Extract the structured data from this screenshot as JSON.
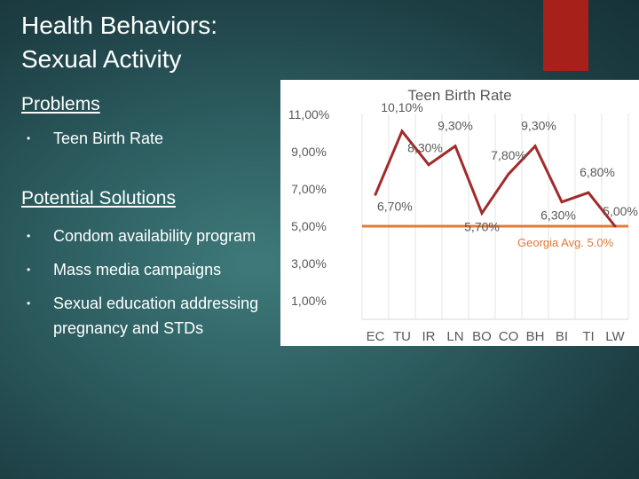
{
  "slide": {
    "title_line1": "Health Behaviors:",
    "title_line2": "Sexual Activity",
    "problems_heading": "Problems",
    "problems": [
      "Teen Birth Rate"
    ],
    "solutions_heading": "Potential Solutions",
    "solutions": [
      "Condom availability program",
      "Mass media campaigns",
      "Sexual education addressing pregnancy and STDs"
    ]
  },
  "colors": {
    "accent_red": "#a8201a",
    "series_line": "#a32a2a",
    "reference_line": "#e07b39",
    "axis_text": "#595959"
  },
  "chart_data": {
    "type": "line",
    "title": "Teen Birth Rate",
    "categories": [
      "EC",
      "TU",
      "IR",
      "LN",
      "BO",
      "CO",
      "BH",
      "BI",
      "TI",
      "LW"
    ],
    "series": [
      {
        "name": "Teen Birth Rate",
        "values": [
          6.7,
          10.1,
          8.3,
          9.3,
          5.7,
          7.8,
          9.3,
          6.3,
          6.8,
          5.0
        ],
        "labels": [
          "6,70%",
          "10,10%",
          "8,30%",
          "9,30%",
          "5,70%",
          "7,80%",
          "9,30%",
          "6,30%",
          "6,80%",
          "5,00%"
        ]
      }
    ],
    "reference_line": {
      "value": 5.0,
      "label": "Georgia Avg. 5.0%"
    },
    "yticks": [
      "11,00%",
      "9,00%",
      "7,00%",
      "5,00%",
      "3,00%",
      "1,00%"
    ],
    "ytick_values": [
      11,
      9,
      7,
      5,
      3,
      1
    ],
    "ylim": [
      0,
      12
    ],
    "grid": "vertical"
  }
}
